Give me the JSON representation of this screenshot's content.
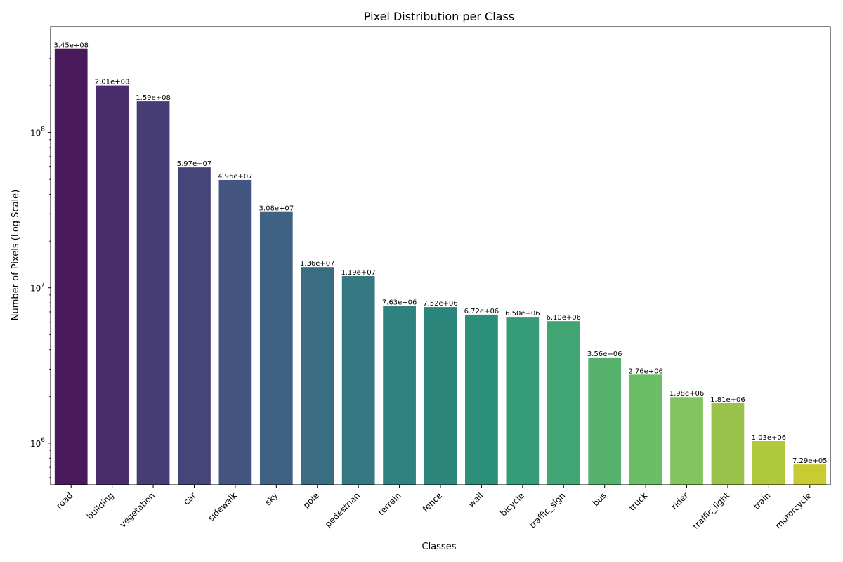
{
  "chart_data": {
    "type": "bar",
    "title": "Pixel Distribution per Class",
    "xlabel": "Classes",
    "ylabel": "Number of Pixels (Log Scale)",
    "yscale": "log",
    "ylim": [
      540000,
      480000000
    ],
    "yticks": [
      1000000,
      10000000,
      100000000
    ],
    "ytick_labels": [
      {
        "base": "10",
        "exp": "6"
      },
      {
        "base": "10",
        "exp": "7"
      },
      {
        "base": "10",
        "exp": "8"
      }
    ],
    "categories": [
      "road",
      "building",
      "vegetation",
      "car",
      "sidewalk",
      "sky",
      "pole",
      "pedestrian",
      "terrain",
      "fence",
      "wall",
      "bicycle",
      "traffic_sign",
      "bus",
      "truck",
      "rider",
      "traffic_light",
      "train",
      "motorcycle"
    ],
    "values": [
      345000000,
      201000000,
      159000000,
      59700000,
      49600000,
      30800000,
      13600000,
      11900000,
      7630000,
      7520000,
      6720000,
      6500000,
      6100000,
      3560000,
      2760000,
      1980000,
      1810000,
      1030000,
      729000
    ],
    "value_labels": [
      "3.45e+08",
      "2.01e+08",
      "1.59e+08",
      "5.97e+07",
      "4.96e+07",
      "3.08e+07",
      "1.36e+07",
      "1.19e+07",
      "7.63e+06",
      "7.52e+06",
      "6.72e+06",
      "6.50e+06",
      "6.10e+06",
      "3.56e+06",
      "2.76e+06",
      "1.98e+06",
      "1.81e+06",
      "1.03e+06",
      "7.29e+05"
    ],
    "colors": [
      "#481a5b",
      "#482c6c",
      "#483e76",
      "#46457a",
      "#435580",
      "#3f6182",
      "#3a6d82",
      "#357881",
      "#2f827f",
      "#2d867c",
      "#2b8f79",
      "#369b78",
      "#40a573",
      "#56b16d",
      "#6bbd66",
      "#82c45e",
      "#9ac34b",
      "#b0c83b",
      "#c8cb32"
    ],
    "grid": false,
    "legend": "none"
  }
}
